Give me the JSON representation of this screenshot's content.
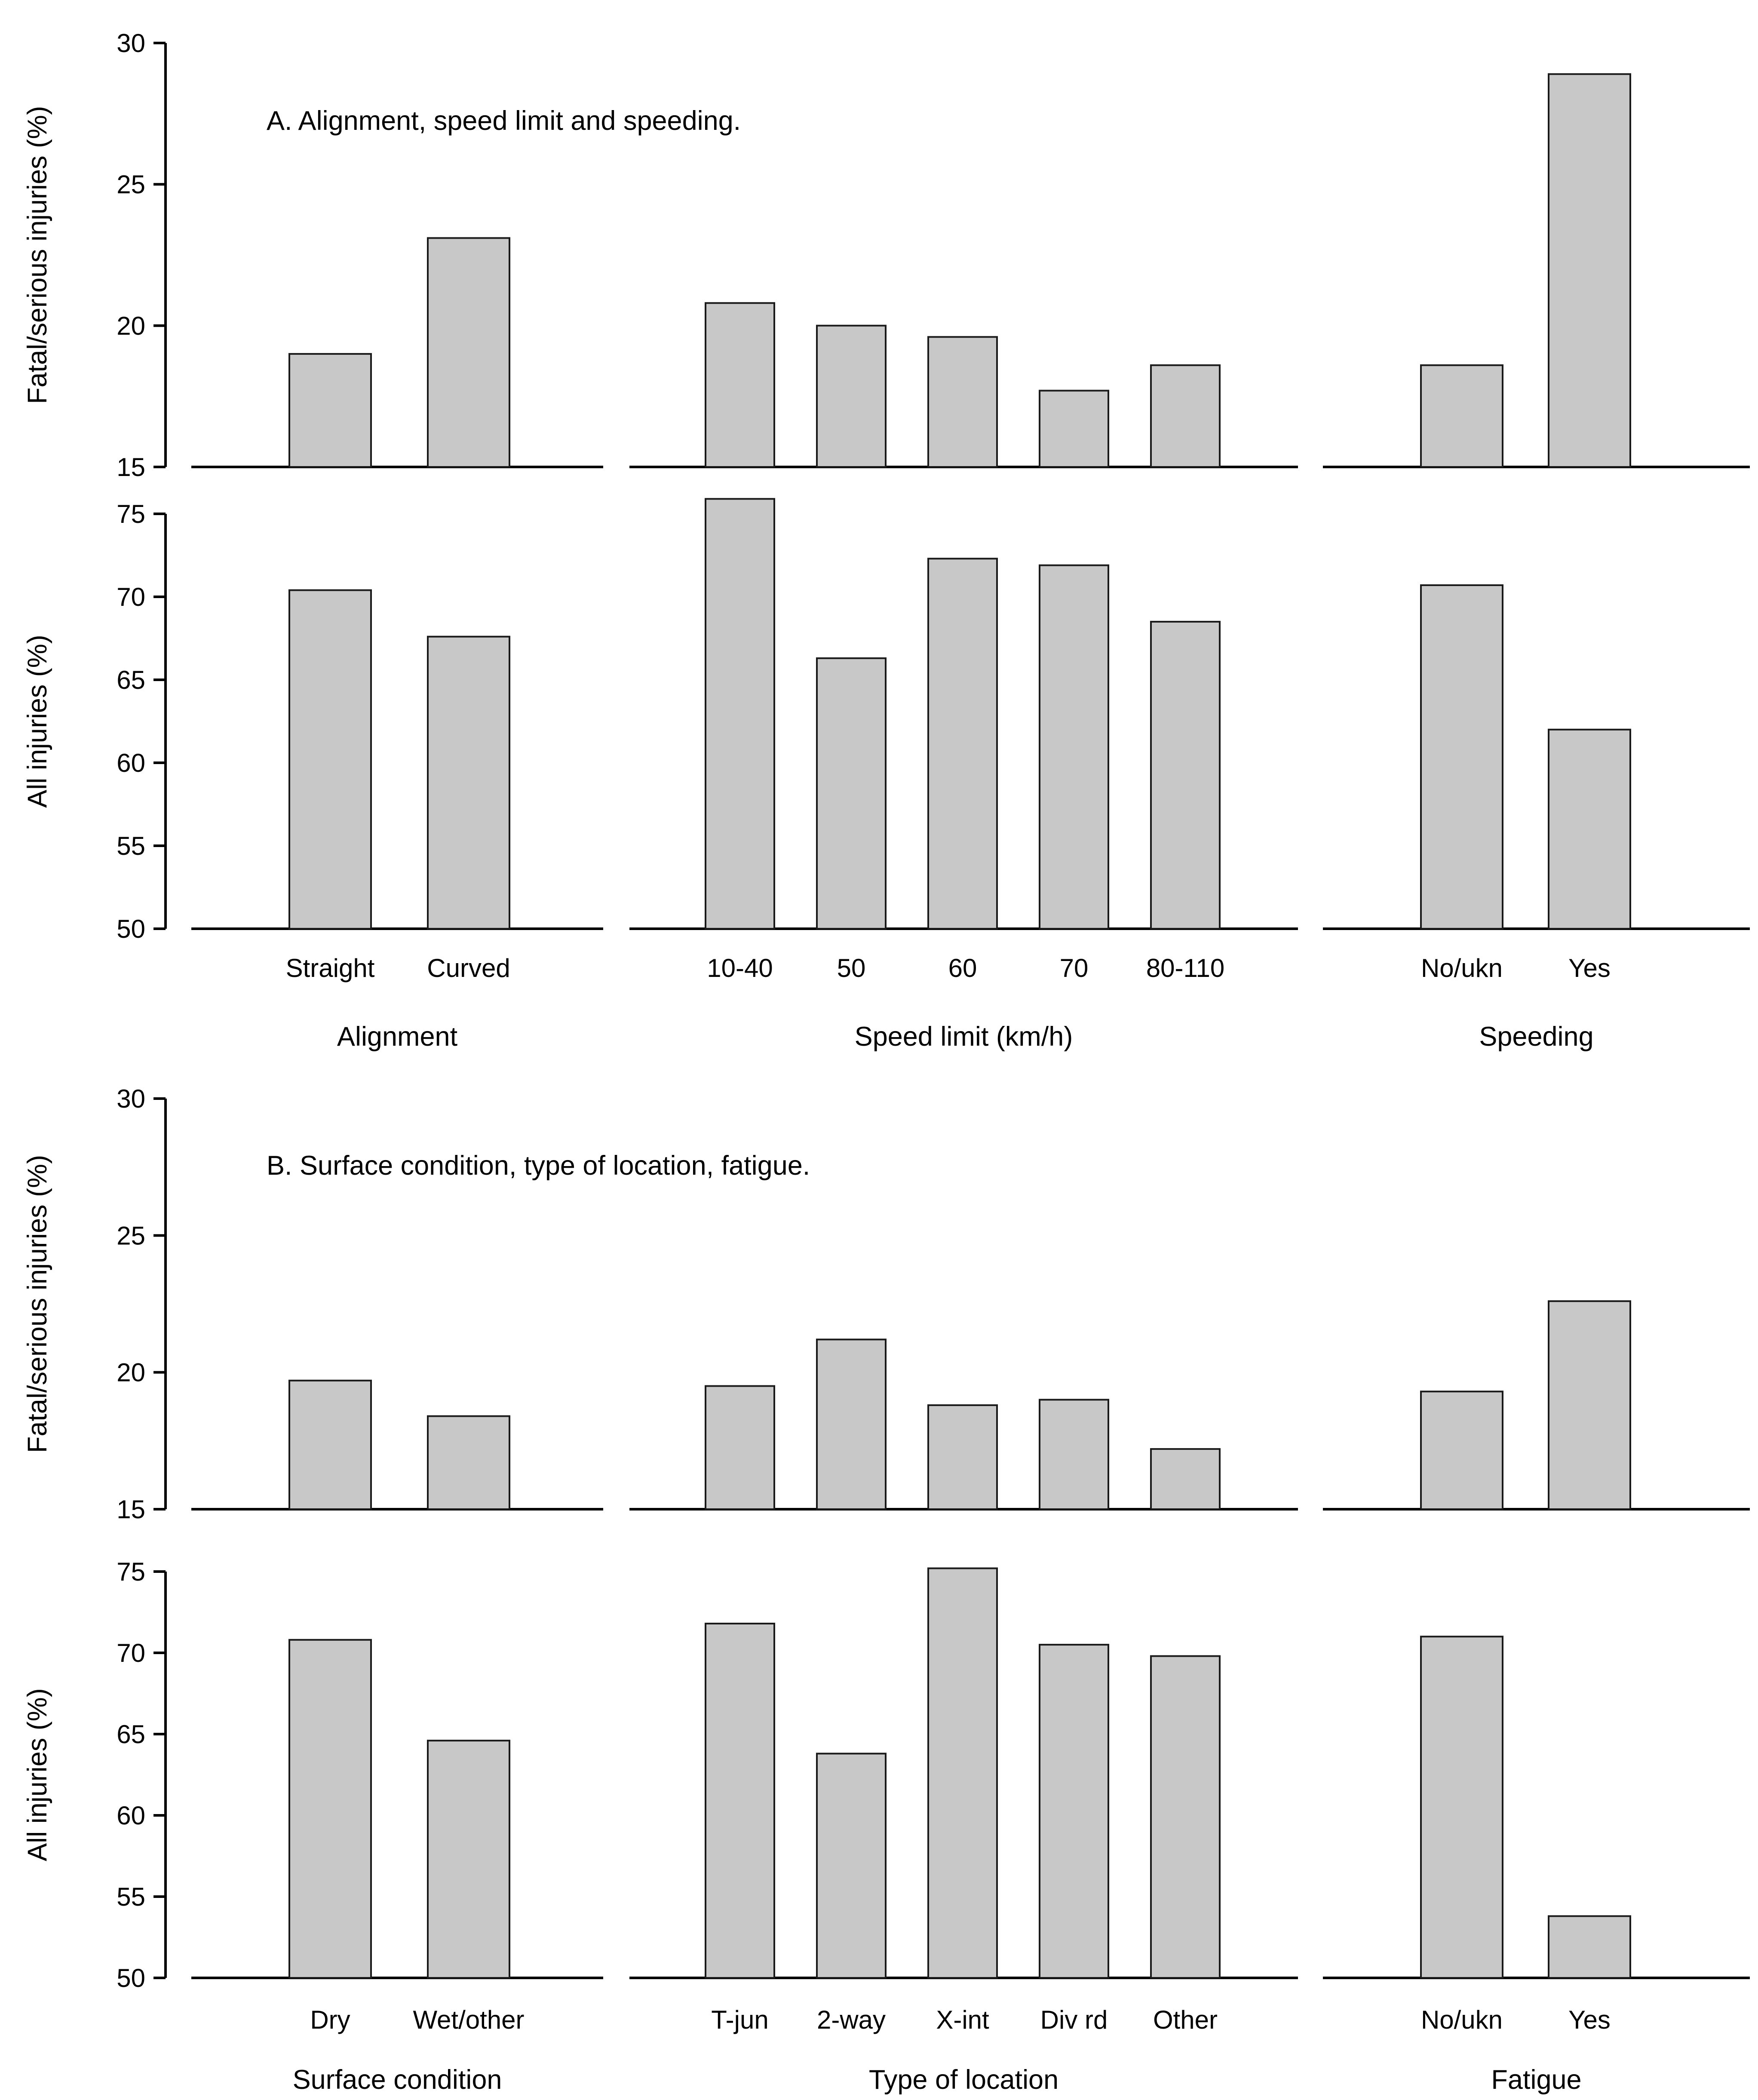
{
  "figure_name": "Injury percentages by road and crash factors",
  "chart_data": {
    "type": "bar",
    "bar_fill_color": "#c8c8c8",
    "bar_border_color": "#1a1a1a",
    "axis_color": "#000000",
    "grid": "off",
    "legend": "none",
    "panels": [
      {
        "label": "A",
        "title": "A. Alignment, speed limit and speeding.",
        "groups": [
          {
            "name": "Alignment",
            "categories": [
              "Straight",
              "Curved"
            ]
          },
          {
            "name": "Speed limit (km/h)",
            "categories": [
              "10-40",
              "50",
              "60",
              "70",
              "80-110"
            ]
          },
          {
            "name": "Speeding",
            "categories": [
              "No/ukn",
              "Yes"
            ]
          }
        ],
        "rows": [
          {
            "ylabel": "Fatal/serious injuries (%)",
            "ylim": [
              15,
              30
            ],
            "yticks": [
              15,
              20,
              25,
              30
            ],
            "values": [
              [
                19.0,
                23.1
              ],
              [
                20.8,
                20.0,
                19.6,
                17.7,
                18.6
              ],
              [
                18.6,
                28.9
              ]
            ]
          },
          {
            "ylabel": "All injuries (%)",
            "ylim": [
              50,
              75
            ],
            "yticks": [
              50,
              55,
              60,
              65,
              70,
              75
            ],
            "values": [
              [
                70.4,
                67.6
              ],
              [
                75.9,
                66.3,
                72.3,
                71.9,
                68.5
              ],
              [
                70.7,
                62.0
              ]
            ]
          }
        ]
      },
      {
        "label": "B",
        "title": "B. Surface condition, type of location, fatigue.",
        "groups": [
          {
            "name": "Surface condition",
            "categories": [
              "Dry",
              "Wet/other"
            ]
          },
          {
            "name": "Type of location",
            "categories": [
              "T-jun",
              "2-way",
              "X-int",
              "Div rd",
              "Other"
            ]
          },
          {
            "name": "Fatigue",
            "categories": [
              "No/ukn",
              "Yes"
            ]
          }
        ],
        "rows": [
          {
            "ylabel": "Fatal/serious injuries (%)",
            "ylim": [
              15,
              30
            ],
            "yticks": [
              15,
              20,
              25,
              30
            ],
            "values": [
              [
                19.7,
                18.4
              ],
              [
                19.5,
                21.2,
                18.8,
                19.0,
                17.2
              ],
              [
                19.3,
                22.6
              ]
            ]
          },
          {
            "ylabel": "All injuries (%)",
            "ylim": [
              50,
              75
            ],
            "yticks": [
              50,
              55,
              60,
              65,
              70,
              75
            ],
            "values": [
              [
                70.8,
                64.6
              ],
              [
                71.8,
                63.8,
                75.2,
                70.5,
                69.8
              ],
              [
                71.0,
                53.8
              ]
            ]
          }
        ]
      }
    ]
  }
}
